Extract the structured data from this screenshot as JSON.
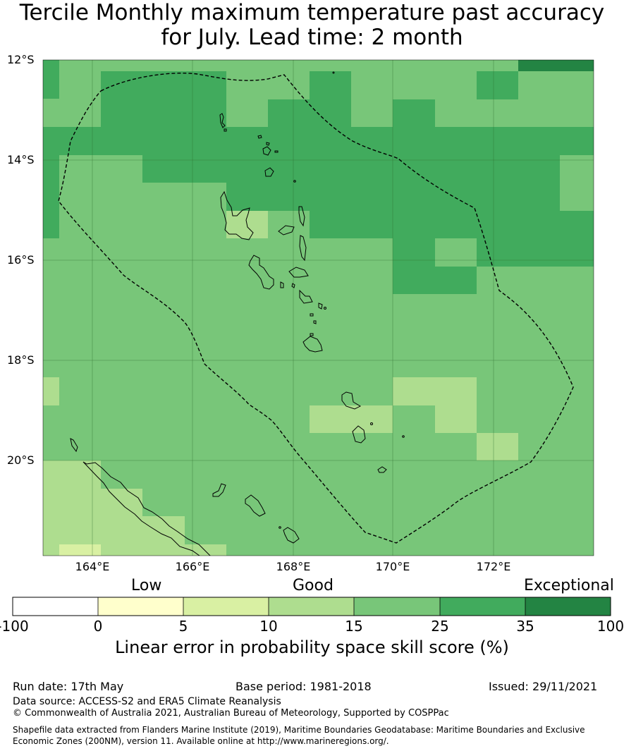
{
  "title": {
    "line1": "Tercile Monthly maximum temperature past accuracy",
    "line2": "for July. Lead time: 2 month"
  },
  "map": {
    "latitude_labels": [
      "12°S",
      "14°S",
      "16°S",
      "18°S",
      "20°S"
    ],
    "longitude_labels": [
      "164°E",
      "166°E",
      "168°E",
      "170°E",
      "172°E"
    ],
    "gridlines": true,
    "eez_boundary": "dashed",
    "colors": {
      "10-15": "#aedd8f",
      "15-25": "#78c679",
      "25-35": "#41ab5d",
      "5-10": "#d9f0a3",
      "coast": "#000000"
    }
  },
  "colorbar": {
    "category_labels": {
      "low": "Low",
      "good": "Good",
      "exceptional": "Exceptional"
    },
    "ticks": [
      "-100",
      "0",
      "5",
      "10",
      "15",
      "25",
      "35",
      "100"
    ],
    "colors": [
      "#ffffff",
      "#ffffcc",
      "#d9f0a3",
      "#aedd8f",
      "#78c679",
      "#41ab5d",
      "#238443"
    ],
    "title": "Linear error in probability space skill score (%)"
  },
  "footer": {
    "run_date": "Run date: 17th May",
    "base_period": "Base period: 1981-2018",
    "issued": "Issued: 29/11/2021",
    "data_source": "Data source: ACCESS-S2 and ERA5 Climate Reanalysis",
    "copyright": "© Commonwealth of Australia 2021, Australian Bureau of Meteorology, Supported by COSPPac",
    "shapefile_line1": "Shapefile data extracted from Flanders Marine Institute (2019), Maritime Boundaries Geodatabase: Maritime Boundaries and Exclusive",
    "shapefile_line2": "Economic Zones (200NM), version 11. Available online at http://www.marineregions.org/."
  }
}
